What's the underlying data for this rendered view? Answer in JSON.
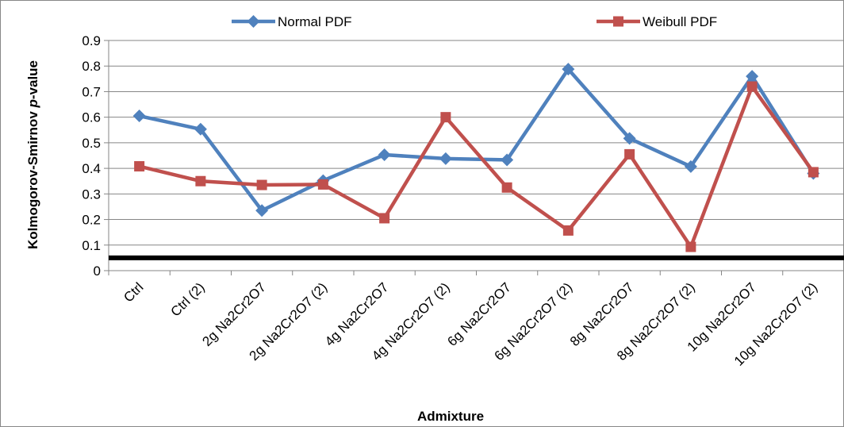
{
  "chart_data": {
    "type": "line",
    "title": "",
    "xlabel": "Admixture",
    "ylabel_prefix": "Kolmogorov-Smirnov ",
    "ylabel_italic": "p",
    "ylabel_suffix": "-value",
    "ylim": [
      0,
      0.9
    ],
    "ytick_step": 0.1,
    "grid": "horizontal",
    "legend_position": "top",
    "categories": [
      "Ctrl",
      "Ctrl (2)",
      "2g Na2Cr2O7",
      "2g Na2Cr2O7 (2)",
      "4g Na2Cr2O7",
      "4g Na2Cr2O7 (2)",
      "6g Na2Cr2O7",
      "6g Na2Cr2O7 (2)",
      "8g Na2Cr2O7",
      "8g Na2Cr2O7 (2)",
      "10g Na2Cr2O7",
      "10g Na2Cr2O7 (2)"
    ],
    "series": [
      {
        "name": "Normal PDF",
        "color": "#4F81BD",
        "marker": "diamond",
        "values": [
          0.605,
          0.553,
          0.235,
          0.352,
          0.453,
          0.438,
          0.433,
          0.788,
          0.517,
          0.407,
          0.76,
          0.38
        ]
      },
      {
        "name": "Weibull PDF",
        "color": "#C0504D",
        "marker": "square",
        "values": [
          0.408,
          0.35,
          0.335,
          0.337,
          0.205,
          0.6,
          0.325,
          0.157,
          0.455,
          0.093,
          0.72,
          0.385
        ]
      }
    ],
    "reference_line": {
      "value": 0.05,
      "color": "#000000"
    }
  }
}
